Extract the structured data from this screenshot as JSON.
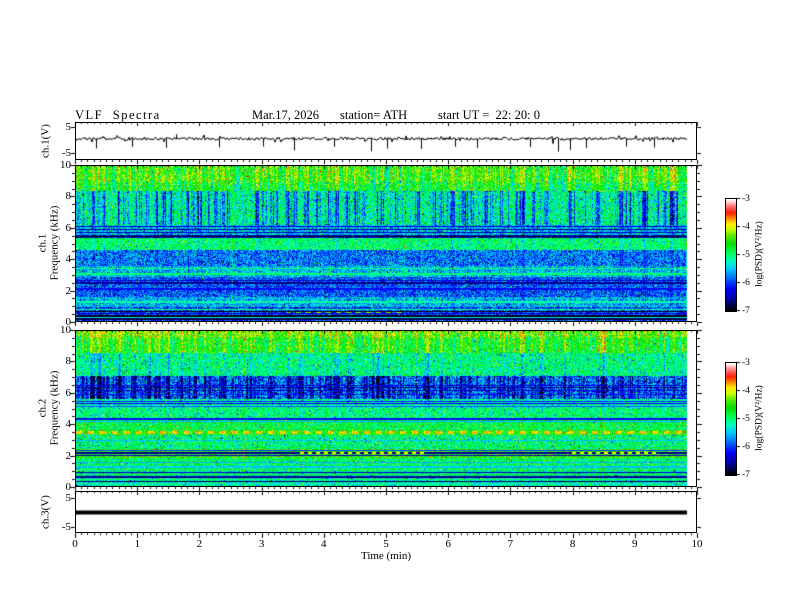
{
  "header": {
    "title": "VLF Spectra",
    "date": "Mar.17, 2026",
    "station": "station= ATH",
    "start_ut": "start UT =  22: 20: 0"
  },
  "axes": {
    "time": {
      "label": "Time (min)",
      "range_min": [
        0,
        10
      ],
      "major_ticks": [
        0,
        1,
        2,
        3,
        4,
        5,
        6,
        7,
        8,
        9,
        10
      ],
      "minor_step": 0.1
    },
    "frequency": {
      "unit": "kHz",
      "range_khz": [
        0,
        10
      ],
      "major_ticks": [
        0,
        2,
        4,
        6,
        8,
        10
      ],
      "minor_step": 0.5
    },
    "voltage": {
      "unit": "V",
      "range_v": [
        -5,
        5
      ],
      "shown_ticks": [
        5,
        -5
      ]
    }
  },
  "colorbar": {
    "label": "log(PSD)(V²/Hz)",
    "tick_values": [
      -3,
      -4,
      -5,
      -6,
      -7
    ],
    "range": [
      -7,
      -3
    ],
    "gradient_stops": [
      {
        "t": 0.0,
        "c": "#000000"
      },
      {
        "t": 0.09,
        "c": "#00008b"
      },
      {
        "t": 0.2,
        "c": "#0000ff"
      },
      {
        "t": 0.3,
        "c": "#0077ff"
      },
      {
        "t": 0.38,
        "c": "#00ccff"
      },
      {
        "t": 0.45,
        "c": "#00ffbb"
      },
      {
        "t": 0.52,
        "c": "#00ff55"
      },
      {
        "t": 0.6,
        "c": "#00dd00"
      },
      {
        "t": 0.68,
        "c": "#66ee00"
      },
      {
        "t": 0.73,
        "c": "#ccff00"
      },
      {
        "t": 0.78,
        "c": "#ffee00"
      },
      {
        "t": 0.83,
        "c": "#ff8800"
      },
      {
        "t": 0.88,
        "c": "#ff2200"
      },
      {
        "t": 0.93,
        "c": "#ff6666"
      },
      {
        "t": 0.97,
        "c": "#ffbbbb"
      },
      {
        "t": 1.0,
        "c": "#ffffff"
      }
    ]
  },
  "chart_data": [
    {
      "type": "line",
      "name": "ch1-voltage-waveform",
      "ylabel": "ch.1(V)",
      "ylim": [
        -5,
        5
      ],
      "time_range_min": [
        0,
        9.85
      ],
      "baseline_v": 0.5,
      "noise_amp_v": 0.9,
      "spikes": [
        {
          "t": 0.32,
          "v": -3.2
        },
        {
          "t": 0.9,
          "v": -2.6
        },
        {
          "t": 1.45,
          "v": -3.0
        },
        {
          "t": 1.6,
          "v": 2.2
        },
        {
          "t": 2.3,
          "v": -2.8
        },
        {
          "t": 3.0,
          "v": -2.5
        },
        {
          "t": 3.5,
          "v": -4.0
        },
        {
          "t": 4.15,
          "v": -2.6
        },
        {
          "t": 4.75,
          "v": -4.3
        },
        {
          "t": 5.0,
          "v": -3.3
        },
        {
          "t": 5.55,
          "v": -3.4
        },
        {
          "t": 6.1,
          "v": -2.6
        },
        {
          "t": 6.45,
          "v": -3.0
        },
        {
          "t": 7.3,
          "v": -2.7
        },
        {
          "t": 7.75,
          "v": -4.5
        },
        {
          "t": 7.95,
          "v": -3.8
        },
        {
          "t": 8.2,
          "v": -3.0
        },
        {
          "t": 8.85,
          "v": -2.5
        },
        {
          "t": 9.3,
          "v": -2.9
        }
      ]
    },
    {
      "type": "heatmap",
      "name": "ch1-spectrogram",
      "ylabel_line1": "ch.1",
      "ylabel_line2": "Frequency (kHz)",
      "freq_range_khz": [
        0,
        10
      ],
      "time_range_min": [
        0,
        9.85
      ],
      "psd_range_log": [
        -7,
        -3
      ],
      "bands": [
        {
          "f0": 9.0,
          "f1": 10.01,
          "level": -4.55,
          "noise": 0.4
        },
        {
          "f0": 8.4,
          "f1": 9.0,
          "level": -4.75,
          "noise": 0.4
        },
        {
          "f0": 6.2,
          "f1": 8.4,
          "level": -5.05,
          "noise": 0.5
        },
        {
          "f0": 5.55,
          "f1": 6.2,
          "level": -5.5,
          "noise": 0.55
        },
        {
          "f0": 5.35,
          "f1": 5.55,
          "level": -6.4,
          "noise": 0.45
        },
        {
          "f0": 4.55,
          "f1": 5.35,
          "level": -4.95,
          "noise": 0.3
        },
        {
          "f0": 3.55,
          "f1": 4.55,
          "level": -5.8,
          "noise": 0.5
        },
        {
          "f0": 2.85,
          "f1": 3.55,
          "level": -5.5,
          "noise": 0.5
        },
        {
          "f0": 1.55,
          "f1": 2.85,
          "level": -5.9,
          "noise": 0.5
        },
        {
          "f0": 0.85,
          "f1": 1.55,
          "level": -5.55,
          "noise": 0.45
        },
        {
          "f0": 0.0,
          "f1": 0.85,
          "level": -6.0,
          "noise": 0.6
        }
      ],
      "lines": [
        {
          "f": 6.1,
          "hw": 0.04,
          "level": -6.3
        },
        {
          "f": 5.92,
          "hw": 0.04,
          "level": -6.5
        },
        {
          "f": 5.72,
          "hw": 0.04,
          "level": -6.4
        },
        {
          "f": 5.45,
          "hw": 0.06,
          "level": -6.8
        },
        {
          "f": 3.38,
          "hw": 0.05,
          "level": -5.05
        },
        {
          "f": 3.02,
          "hw": 0.05,
          "level": -5.0
        },
        {
          "f": 2.6,
          "hw": 0.04,
          "level": -6.4
        },
        {
          "f": 2.42,
          "hw": 0.05,
          "level": -6.6
        },
        {
          "f": 2.05,
          "hw": 0.04,
          "level": -6.2
        },
        {
          "f": 1.2,
          "hw": 0.04,
          "level": -5.15
        },
        {
          "f": 0.72,
          "hw": 0.05,
          "level": -5.1
        },
        {
          "f": 0.58,
          "hw": 0.05,
          "level": -6.9
        },
        {
          "f": 0.5,
          "hw": 0.05,
          "level": -4.2,
          "t0": 3.4,
          "t1": 5.3,
          "dash": 5
        },
        {
          "f": 0.44,
          "hw": 0.05,
          "level": -6.3
        },
        {
          "f": 0.3,
          "hw": 0.06,
          "level": -6.9
        },
        {
          "f": 0.18,
          "hw": 0.05,
          "level": -5.3
        },
        {
          "f": 0.08,
          "hw": 0.05,
          "level": -6.8
        }
      ],
      "streak_zones": [
        {
          "f0": 8.4,
          "f1": 10.01,
          "type": "mod",
          "depth": 1.0
        },
        {
          "f0": 6.2,
          "f1": 8.4,
          "type": "dark",
          "depth": 1.9,
          "thresh": 0.5
        },
        {
          "f0": 4.55,
          "f1": 6.2,
          "type": "dark",
          "depth": 0.6,
          "thresh": 0.62
        },
        {
          "f0": 2.85,
          "f1": 4.55,
          "type": "dark",
          "depth": 0.5,
          "thresh": 0.68
        },
        {
          "f0": 0.85,
          "f1": 2.85,
          "type": "dark",
          "depth": 0.45,
          "thresh": 0.7
        }
      ],
      "red_speckle": {
        "f_min": 8.8,
        "prob": 0.045
      }
    },
    {
      "type": "heatmap",
      "name": "ch2-spectrogram",
      "ylabel_line1": "ch.2",
      "ylabel_line2": "Frequency (kHz)",
      "freq_range_khz": [
        0,
        10
      ],
      "time_range_min": [
        0,
        9.85
      ],
      "psd_range_log": [
        -7,
        -3
      ],
      "bands": [
        {
          "f0": 9.6,
          "f1": 10.01,
          "level": -4.35,
          "noise": 0.45
        },
        {
          "f0": 8.6,
          "f1": 9.6,
          "level": -4.6,
          "noise": 0.4
        },
        {
          "f0": 7.1,
          "f1": 8.6,
          "level": -5.0,
          "noise": 0.4
        },
        {
          "f0": 5.6,
          "f1": 7.1,
          "level": -5.75,
          "noise": 0.6
        },
        {
          "f0": 5.05,
          "f1": 5.6,
          "level": -5.15,
          "noise": 0.4
        },
        {
          "f0": 4.4,
          "f1": 5.05,
          "level": -5.0,
          "noise": 0.35
        },
        {
          "f0": 3.6,
          "f1": 4.4,
          "level": -4.85,
          "noise": 0.4
        },
        {
          "f0": 3.3,
          "f1": 3.6,
          "level": -4.6,
          "noise": 0.4
        },
        {
          "f0": 2.35,
          "f1": 3.3,
          "level": -5.0,
          "noise": 0.45
        },
        {
          "f0": 1.8,
          "f1": 2.35,
          "level": -4.5,
          "noise": 0.35
        },
        {
          "f0": 0.95,
          "f1": 1.8,
          "level": -4.95,
          "noise": 0.35
        },
        {
          "f0": 0.0,
          "f1": 0.95,
          "level": -5.2,
          "noise": 0.5
        }
      ],
      "lines": [
        {
          "f": 6.5,
          "hw": 0.03,
          "level": -6.3
        },
        {
          "f": 6.35,
          "hw": 0.04,
          "level": -6.6
        },
        {
          "f": 6.18,
          "hw": 0.03,
          "level": -6.4
        },
        {
          "f": 5.9,
          "hw": 0.03,
          "level": -6.2
        },
        {
          "f": 5.45,
          "hw": 0.04,
          "level": -6.1
        },
        {
          "f": 5.3,
          "hw": 0.04,
          "level": -6.3
        },
        {
          "f": 5.15,
          "hw": 0.03,
          "level": -5.9
        },
        {
          "f": 4.32,
          "hw": 0.05,
          "level": -6.2
        },
        {
          "f": 4.18,
          "hw": 0.03,
          "level": -5.6
        },
        {
          "f": 3.45,
          "hw": 0.08,
          "level": -3.8,
          "dash": 6
        },
        {
          "f": 2.9,
          "hw": 0.03,
          "level": -5.5
        },
        {
          "f": 2.28,
          "hw": 0.04,
          "level": -6.0
        },
        {
          "f": 2.1,
          "hw": 0.05,
          "level": -6.6
        },
        {
          "f": 2.1,
          "hw": 0.05,
          "level": -4.0,
          "t0": 3.6,
          "t1": 5.6,
          "dash": 4
        },
        {
          "f": 2.1,
          "hw": 0.05,
          "level": -4.0,
          "t0": 7.95,
          "t1": 9.35,
          "dash": 4
        },
        {
          "f": 1.93,
          "hw": 0.04,
          "level": -6.4
        },
        {
          "f": 1.5,
          "hw": 0.04,
          "level": -5.6
        },
        {
          "f": 1.2,
          "hw": 0.04,
          "level": -5.5
        },
        {
          "f": 0.85,
          "hw": 0.05,
          "level": -6.5
        },
        {
          "f": 0.7,
          "hw": 0.04,
          "level": -4.8
        },
        {
          "f": 0.55,
          "hw": 0.05,
          "level": -6.6
        },
        {
          "f": 0.4,
          "hw": 0.04,
          "level": -5.0
        },
        {
          "f": 0.27,
          "hw": 0.05,
          "level": -6.7
        },
        {
          "f": 0.12,
          "hw": 0.05,
          "level": -5.2
        }
      ],
      "streak_zones": [
        {
          "f0": 8.6,
          "f1": 10.01,
          "type": "mod",
          "depth": 0.9
        },
        {
          "f0": 7.1,
          "f1": 8.6,
          "type": "dark",
          "depth": 0.9,
          "thresh": 0.56
        },
        {
          "f0": 5.6,
          "f1": 7.1,
          "type": "dark",
          "depth": 1.7,
          "thresh": 0.42
        },
        {
          "f0": 4.4,
          "f1": 5.6,
          "type": "dark",
          "depth": 0.5,
          "thresh": 0.65
        }
      ],
      "red_speckle": {
        "f_min": 9.75,
        "prob": 0.12
      }
    },
    {
      "type": "line",
      "name": "ch3-voltage-waveform",
      "ylabel": "ch.3(V)",
      "ylim": [
        -5,
        5
      ],
      "time_range_min": [
        0,
        9.85
      ],
      "constant_v": 0,
      "line_thickness_px": 4
    }
  ]
}
